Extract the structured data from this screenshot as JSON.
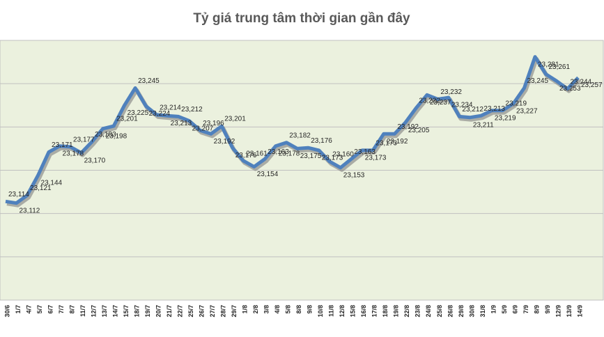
{
  "chart_data": {
    "type": "line",
    "title": "Tỷ giá trung tâm thời gian gần đây",
    "categories": [
      "30/6",
      "1/7",
      "4/7",
      "5/7",
      "6/7",
      "7/7",
      "8/7",
      "11/7",
      "12/7",
      "13/7",
      "14/7",
      "15/7",
      "18/7",
      "19/7",
      "20/7",
      "21/7",
      "22/7",
      "25/7",
      "26/7",
      "27/7",
      "28/7",
      "29/7",
      "1/8",
      "2/8",
      "3/8",
      "4/8",
      "5/8",
      "8/8",
      "9/8",
      "10/8",
      "11/8",
      "12/8",
      "15/8",
      "16/8",
      "17/8",
      "18/8",
      "19/8",
      "22/8",
      "23/8",
      "24/8",
      "25/8",
      "26/8",
      "29/8",
      "30/8",
      "31/8",
      "1/9",
      "5/9",
      "6/9",
      "7/9",
      "8/9",
      "9/9",
      "12/9",
      "13/9",
      "14/9"
    ],
    "values": [
      23114,
      23112,
      23121,
      23144,
      23171,
      23178,
      23177,
      23170,
      23183,
      23198,
      23201,
      23225,
      23245,
      23224,
      23214,
      23213,
      23212,
      23207,
      23196,
      23192,
      23201,
      23176,
      23161,
      23154,
      23163,
      23178,
      23182,
      23175,
      23176,
      23173,
      23160,
      23153,
      23163,
      23173,
      23173,
      23192,
      23192,
      23205,
      23222,
      23237,
      23232,
      23234,
      23212,
      23211,
      23213,
      23219,
      23219,
      23227,
      23245,
      23281,
      23261,
      23253,
      23244,
      23257
    ],
    "value_labels": [
      "23,114",
      "23,112",
      "23,121",
      "23,144",
      "23,171",
      "23,178",
      "23,177",
      "23,170",
      "23,183",
      "23,198",
      "23,201",
      "23,225",
      "23,245",
      "23,224",
      "23,214",
      "23,213",
      "23,212",
      "23,207",
      "23,196",
      "23,192",
      "23,201",
      "23,176",
      "23,161",
      "23,154",
      "23,163",
      "23,178",
      "23,182",
      "23,175",
      "23,176",
      "23,173",
      "23,160",
      "23,153",
      "23,163",
      "23,173",
      "23,173",
      "23,192",
      "23,192",
      "23,205",
      "23,222",
      "23,237",
      "23,232",
      "23,234",
      "23,212",
      "23,211",
      "23,213",
      "23,219",
      "23,219",
      "23,227",
      "23,245",
      "23,281",
      "23,261",
      "23,253",
      "23,244",
      "23,257"
    ],
    "color": "#4f81bd",
    "ylim": [
      23000,
      23300
    ],
    "yticks": [
      23000,
      23050,
      23100,
      23150,
      23200,
      23250,
      23300
    ],
    "grid": true
  }
}
